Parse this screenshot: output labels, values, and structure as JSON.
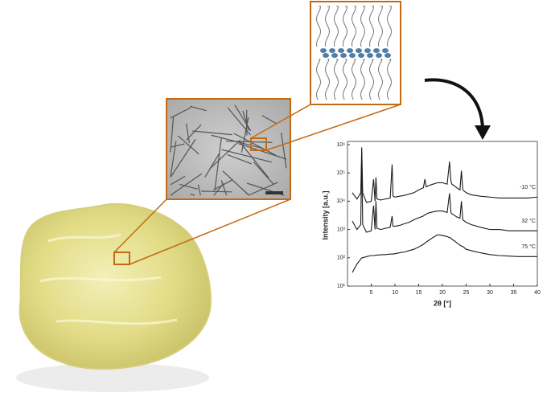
{
  "chart_data": {
    "type": "line",
    "ylabel": "Intensity [a.u.]",
    "xlabel": "2θ [°]",
    "log_y": true,
    "xlim": [
      0,
      40
    ],
    "xticks": [
      5,
      10,
      15,
      20,
      25,
      30,
      35,
      40
    ],
    "ylim": [
      10,
      1000000
    ],
    "yticks": [
      {
        "value": 10,
        "label": "10¹"
      },
      {
        "value": 100,
        "label": "10²"
      },
      {
        "value": 1000,
        "label": "10³"
      },
      {
        "value": 10000,
        "label": "10⁴"
      },
      {
        "value": 100000,
        "label": "10⁵"
      },
      {
        "value": 1000000,
        "label": "10⁶"
      }
    ],
    "x": [
      1,
      2,
      2.8,
      3,
      3.2,
      4,
      5,
      5.5,
      5.8,
      6,
      6.2,
      7,
      8,
      9,
      9.4,
      9.6,
      10,
      11,
      12,
      13,
      14,
      15,
      16,
      16.3,
      16.6,
      17,
      18,
      19,
      20,
      21,
      21.5,
      21.8,
      22,
      22.5,
      23,
      23.7,
      24,
      24.3,
      25,
      26,
      28,
      30,
      32,
      34,
      36,
      38,
      40
    ],
    "series": [
      {
        "name": "-10 °C",
        "color": "#1a1a1a",
        "values": [
          20000,
          12000,
          20000,
          800000,
          20000,
          9000,
          10000,
          60000,
          10000,
          70000,
          12000,
          11000,
          12000,
          13000,
          200000,
          15000,
          14000,
          15000,
          16000,
          18000,
          20000,
          25000,
          30000,
          60000,
          32000,
          35000,
          40000,
          45000,
          45000,
          40000,
          250000,
          50000,
          40000,
          35000,
          30000,
          25000,
          120000,
          25000,
          20000,
          17000,
          15000,
          14000,
          13000,
          13000,
          13000,
          13000,
          14000
        ]
      },
      {
        "name": "32 °C",
        "color": "#1a1a1a",
        "values": [
          2000,
          1000,
          1500,
          500000,
          1500,
          800,
          900,
          7000,
          1000,
          10000,
          1100,
          1000,
          1100,
          1200,
          3000,
          1300,
          1300,
          1400,
          1600,
          1800,
          2200,
          2600,
          3000,
          3300,
          3500,
          3800,
          4200,
          4500,
          4500,
          4000,
          19000,
          4000,
          3600,
          3200,
          2800,
          2500,
          10000,
          2200,
          1800,
          1500,
          1200,
          1000,
          1000,
          900,
          900,
          900,
          900
        ]
      },
      {
        "name": "75 °C",
        "color": "#1a1a1a",
        "values": [
          30,
          60,
          90,
          100,
          100,
          110,
          120,
          120,
          120,
          125,
          125,
          128,
          130,
          135,
          135,
          135,
          140,
          150,
          160,
          180,
          200,
          240,
          300,
          330,
          360,
          400,
          520,
          650,
          620,
          560,
          520,
          500,
          450,
          400,
          340,
          280,
          260,
          250,
          200,
          180,
          150,
          130,
          120,
          115,
          110,
          110,
          110
        ]
      }
    ]
  }
}
